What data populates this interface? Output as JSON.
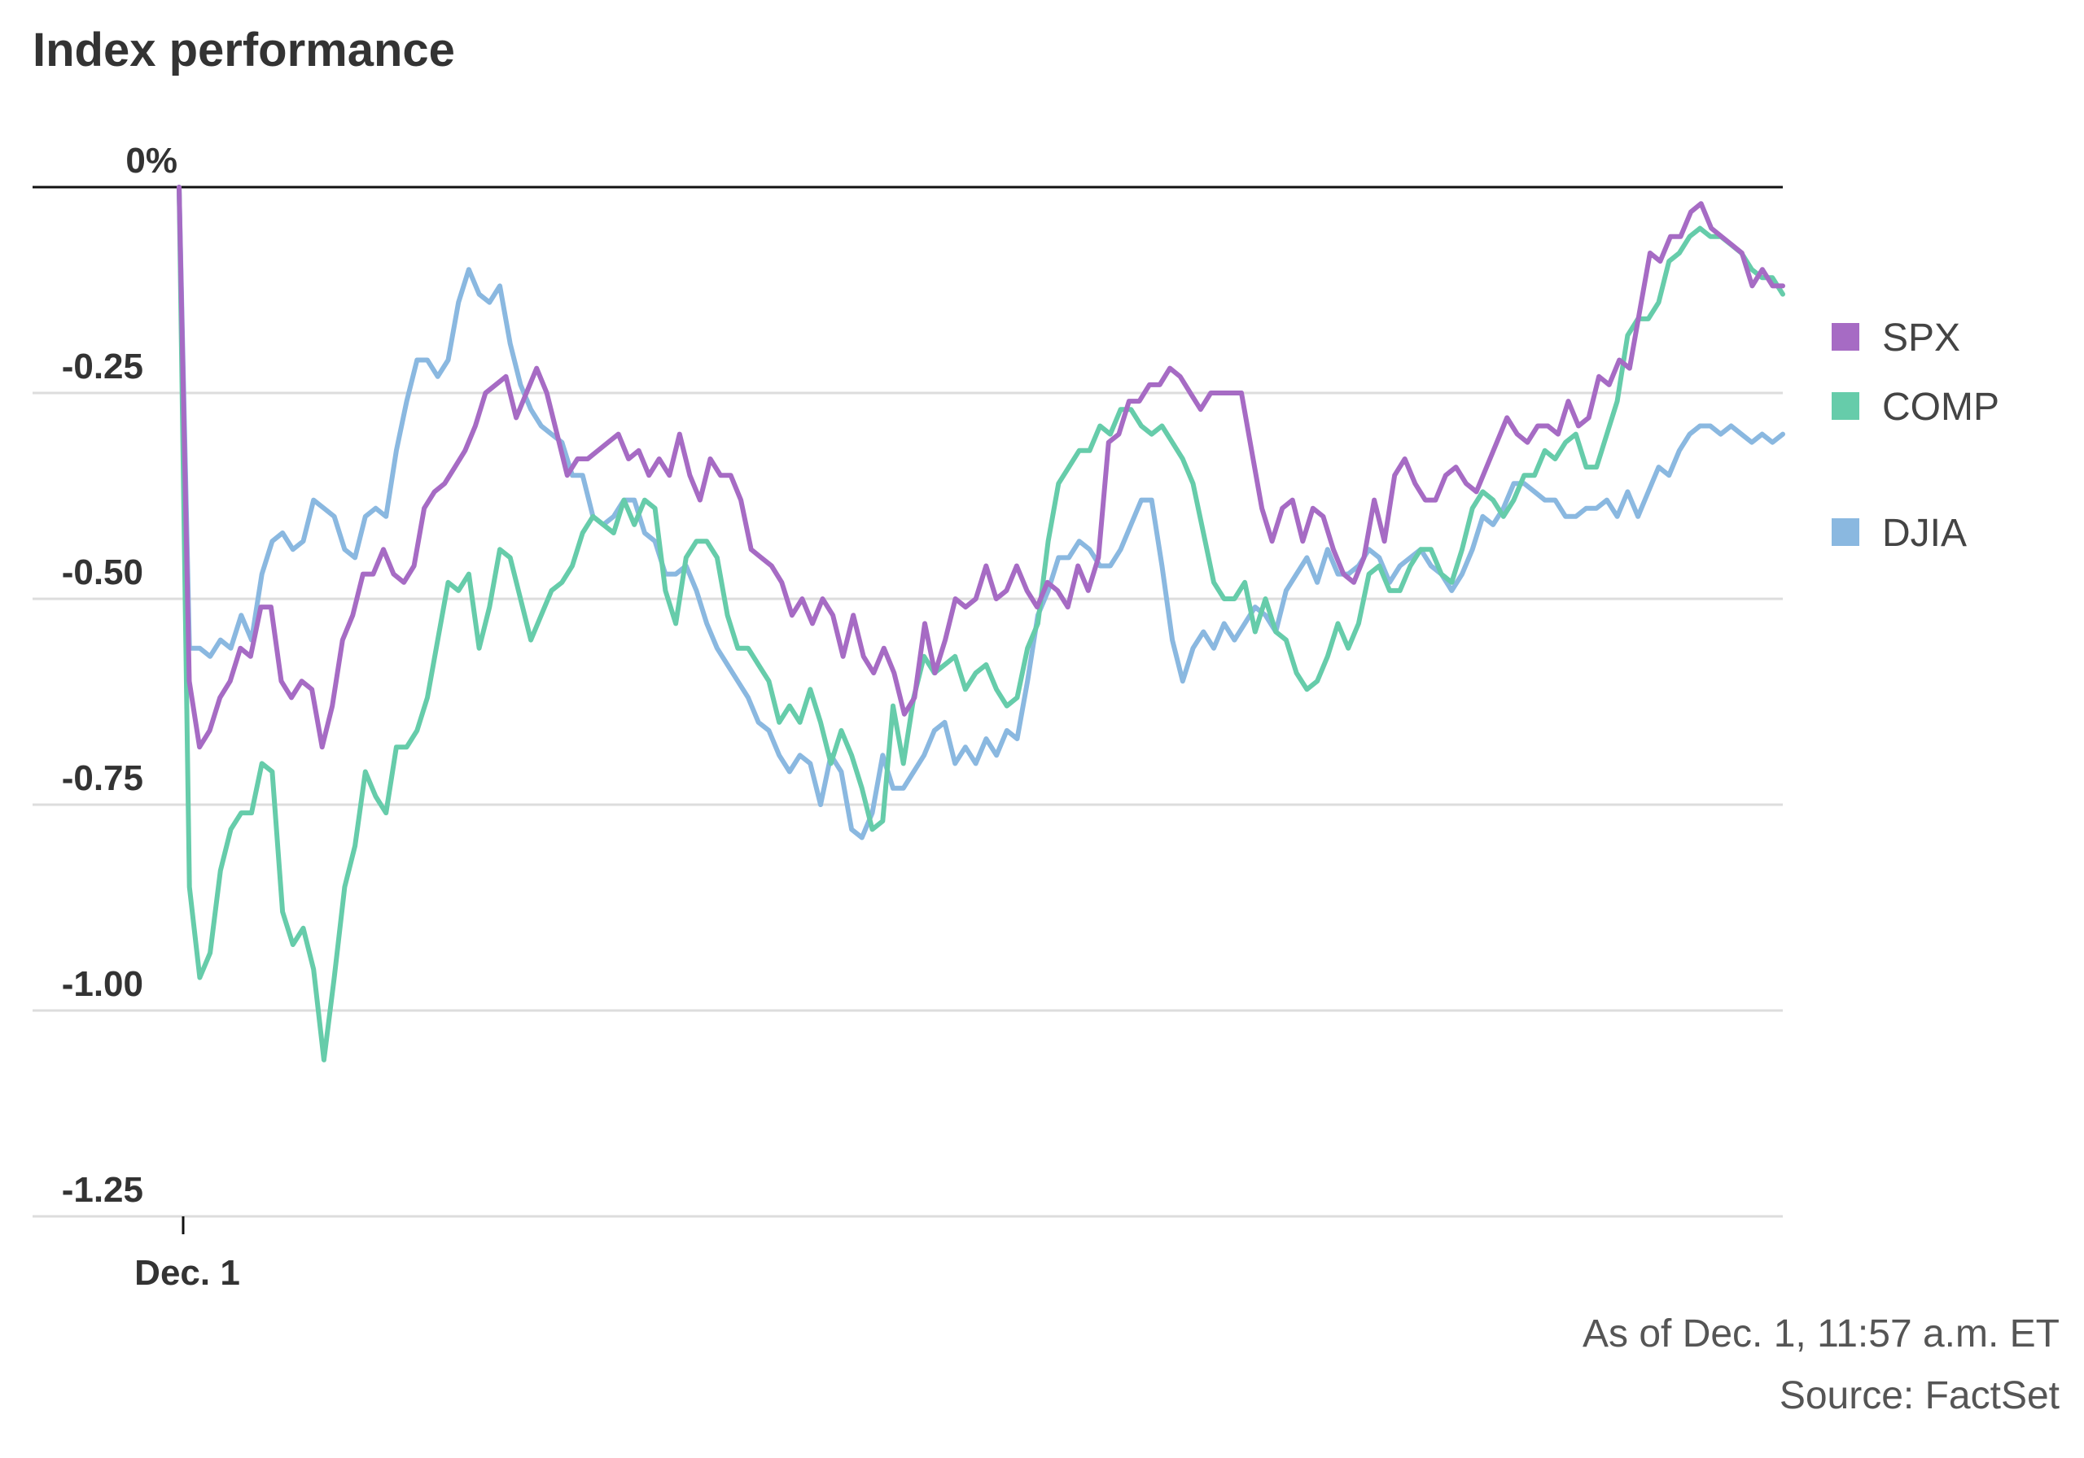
{
  "title": "Index performance",
  "footer": {
    "as_of": "As of Dec. 1, 11:57 a.m. ET",
    "source": "Source: FactSet"
  },
  "chart_data": {
    "type": "line",
    "title": "Index performance",
    "xlabel": "",
    "ylabel": "",
    "x_tick_labels": [
      "Dec. 1"
    ],
    "y_ticks": [
      0,
      -0.25,
      -0.5,
      -0.75,
      -1.0,
      -1.25
    ],
    "y_tick_labels": [
      "0%",
      "-0.25",
      "-0.50",
      "-0.75",
      "-1.00",
      "-1.25"
    ],
    "ylim": [
      -1.25,
      0
    ],
    "grid": true,
    "legend": "right",
    "series": [
      {
        "name": "SPX",
        "color": "#a66bc4",
        "values": [
          0.0,
          -0.6,
          -0.68,
          -0.66,
          -0.62,
          -0.6,
          -0.56,
          -0.57,
          -0.51,
          -0.51,
          -0.6,
          -0.62,
          -0.6,
          -0.61,
          -0.68,
          -0.63,
          -0.55,
          -0.52,
          -0.47,
          -0.47,
          -0.44,
          -0.47,
          -0.48,
          -0.46,
          -0.39,
          -0.37,
          -0.36,
          -0.34,
          -0.32,
          -0.29,
          -0.25,
          -0.24,
          -0.23,
          -0.28,
          -0.25,
          -0.22,
          -0.25,
          -0.3,
          -0.35,
          -0.33,
          -0.33,
          -0.32,
          -0.31,
          -0.3,
          -0.33,
          -0.32,
          -0.35,
          -0.33,
          -0.35,
          -0.3,
          -0.35,
          -0.38,
          -0.33,
          -0.35,
          -0.35,
          -0.38,
          -0.44,
          -0.45,
          -0.46,
          -0.48,
          -0.52,
          -0.5,
          -0.53,
          -0.5,
          -0.52,
          -0.57,
          -0.52,
          -0.57,
          -0.59,
          -0.56,
          -0.59,
          -0.64,
          -0.62,
          -0.53,
          -0.59,
          -0.55,
          -0.5,
          -0.51,
          -0.5,
          -0.46,
          -0.5,
          -0.49,
          -0.46,
          -0.49,
          -0.51,
          -0.48,
          -0.49,
          -0.51,
          -0.46,
          -0.49,
          -0.45,
          -0.31,
          -0.3,
          -0.26,
          -0.26,
          -0.24,
          -0.24,
          -0.22,
          -0.23,
          -0.25,
          -0.27,
          -0.25,
          -0.25,
          -0.25,
          -0.25,
          -0.32,
          -0.39,
          -0.43,
          -0.39,
          -0.38,
          -0.43,
          -0.39,
          -0.4,
          -0.44,
          -0.47,
          -0.48,
          -0.45,
          -0.38,
          -0.43,
          -0.35,
          -0.33,
          -0.36,
          -0.38,
          -0.38,
          -0.35,
          -0.34,
          -0.36,
          -0.37,
          -0.34,
          -0.31,
          -0.28,
          -0.3,
          -0.31,
          -0.29,
          -0.29,
          -0.3,
          -0.26,
          -0.29,
          -0.28,
          -0.23,
          -0.24,
          -0.21,
          -0.22,
          -0.15,
          -0.08,
          -0.09,
          -0.06,
          -0.06,
          -0.03,
          -0.02,
          -0.05,
          -0.06,
          -0.07,
          -0.08,
          -0.12,
          -0.1,
          -0.12,
          -0.12
        ]
      },
      {
        "name": "COMP",
        "color": "#66ccaa",
        "values": [
          0.0,
          -0.85,
          -0.96,
          -0.93,
          -0.83,
          -0.78,
          -0.76,
          -0.76,
          -0.7,
          -0.71,
          -0.88,
          -0.92,
          -0.9,
          -0.95,
          -1.06,
          -0.96,
          -0.85,
          -0.8,
          -0.71,
          -0.74,
          -0.76,
          -0.68,
          -0.68,
          -0.66,
          -0.62,
          -0.55,
          -0.48,
          -0.49,
          -0.47,
          -0.56,
          -0.51,
          -0.44,
          -0.45,
          -0.5,
          -0.55,
          -0.52,
          -0.49,
          -0.48,
          -0.46,
          -0.42,
          -0.4,
          -0.41,
          -0.42,
          -0.38,
          -0.41,
          -0.38,
          -0.39,
          -0.49,
          -0.53,
          -0.45,
          -0.43,
          -0.43,
          -0.45,
          -0.52,
          -0.56,
          -0.56,
          -0.58,
          -0.6,
          -0.65,
          -0.63,
          -0.65,
          -0.61,
          -0.65,
          -0.7,
          -0.66,
          -0.69,
          -0.73,
          -0.78,
          -0.77,
          -0.63,
          -0.7,
          -0.62,
          -0.57,
          -0.59,
          -0.58,
          -0.57,
          -0.61,
          -0.59,
          -0.58,
          -0.61,
          -0.63,
          -0.62,
          -0.56,
          -0.53,
          -0.43,
          -0.36,
          -0.34,
          -0.32,
          -0.32,
          -0.29,
          -0.3,
          -0.27,
          -0.27,
          -0.29,
          -0.3,
          -0.29,
          -0.31,
          -0.33,
          -0.36,
          -0.42,
          -0.48,
          -0.5,
          -0.5,
          -0.48,
          -0.54,
          -0.5,
          -0.54,
          -0.55,
          -0.59,
          -0.61,
          -0.6,
          -0.57,
          -0.53,
          -0.56,
          -0.53,
          -0.47,
          -0.46,
          -0.49,
          -0.49,
          -0.46,
          -0.44,
          -0.44,
          -0.47,
          -0.48,
          -0.44,
          -0.39,
          -0.37,
          -0.38,
          -0.4,
          -0.38,
          -0.35,
          -0.35,
          -0.32,
          -0.33,
          -0.31,
          -0.3,
          -0.34,
          -0.34,
          -0.3,
          -0.26,
          -0.18,
          -0.16,
          -0.16,
          -0.14,
          -0.09,
          -0.08,
          -0.06,
          -0.05,
          -0.06,
          -0.06,
          -0.07,
          -0.08,
          -0.1,
          -0.11,
          -0.11,
          -0.13
        ]
      },
      {
        "name": "DJIA",
        "color": "#8ab8e0",
        "values": [
          0.0,
          -0.56,
          -0.56,
          -0.57,
          -0.55,
          -0.56,
          -0.52,
          -0.55,
          -0.47,
          -0.43,
          -0.42,
          -0.44,
          -0.43,
          -0.38,
          -0.39,
          -0.4,
          -0.44,
          -0.45,
          -0.4,
          -0.39,
          -0.4,
          -0.32,
          -0.26,
          -0.21,
          -0.21,
          -0.23,
          -0.21,
          -0.14,
          -0.1,
          -0.13,
          -0.14,
          -0.12,
          -0.19,
          -0.24,
          -0.27,
          -0.29,
          -0.3,
          -0.31,
          -0.35,
          -0.35,
          -0.4,
          -0.41,
          -0.4,
          -0.38,
          -0.38,
          -0.42,
          -0.43,
          -0.47,
          -0.47,
          -0.46,
          -0.49,
          -0.53,
          -0.56,
          -0.58,
          -0.6,
          -0.62,
          -0.65,
          -0.66,
          -0.69,
          -0.71,
          -0.69,
          -0.7,
          -0.75,
          -0.69,
          -0.71,
          -0.78,
          -0.79,
          -0.76,
          -0.69,
          -0.73,
          -0.73,
          -0.71,
          -0.69,
          -0.66,
          -0.65,
          -0.7,
          -0.68,
          -0.7,
          -0.67,
          -0.69,
          -0.66,
          -0.67,
          -0.6,
          -0.52,
          -0.49,
          -0.45,
          -0.45,
          -0.43,
          -0.44,
          -0.46,
          -0.46,
          -0.44,
          -0.41,
          -0.38,
          -0.38,
          -0.46,
          -0.55,
          -0.6,
          -0.56,
          -0.54,
          -0.56,
          -0.53,
          -0.55,
          -0.53,
          -0.51,
          -0.52,
          -0.54,
          -0.49,
          -0.47,
          -0.45,
          -0.48,
          -0.44,
          -0.47,
          -0.47,
          -0.46,
          -0.44,
          -0.45,
          -0.48,
          -0.46,
          -0.45,
          -0.44,
          -0.46,
          -0.47,
          -0.49,
          -0.47,
          -0.44,
          -0.4,
          -0.41,
          -0.39,
          -0.36,
          -0.36,
          -0.37,
          -0.38,
          -0.38,
          -0.4,
          -0.4,
          -0.39,
          -0.39,
          -0.38,
          -0.4,
          -0.37,
          -0.4,
          -0.37,
          -0.34,
          -0.35,
          -0.32,
          -0.3,
          -0.29,
          -0.29,
          -0.3,
          -0.29,
          -0.3,
          -0.31,
          -0.3,
          -0.31,
          -0.3
        ]
      }
    ]
  }
}
